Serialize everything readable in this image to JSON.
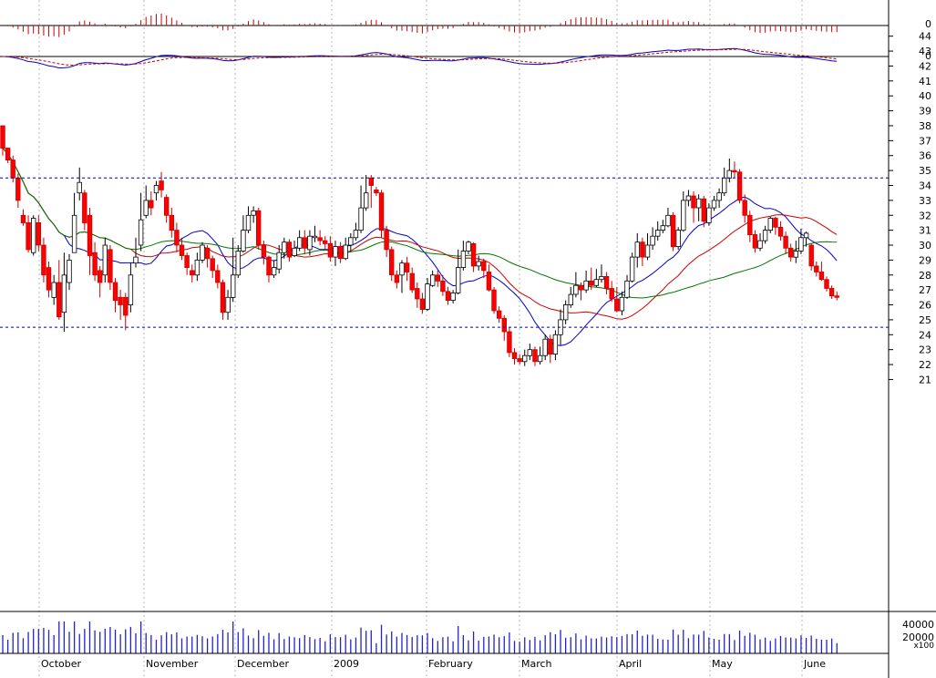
{
  "chart_data": {
    "type": "candlestick",
    "months": [
      "October",
      "November",
      "December",
      "2009",
      "February",
      "March",
      "April",
      "May",
      "June"
    ],
    "y_ticks": [
      "21",
      "22",
      "23",
      "24",
      "25",
      "26",
      "27",
      "28",
      "29",
      "30",
      "31",
      "32",
      "33",
      "34",
      "35",
      "36",
      "37",
      "38",
      "39",
      "40",
      "41",
      "42",
      "43",
      "44"
    ],
    "ylim": [
      20.5,
      44.5
    ],
    "reference_levels": [
      34.5,
      24.5
    ],
    "macd_ticks": [
      "0",
      "0"
    ],
    "volume_ticks": [
      "40000",
      "20000"
    ],
    "volume_scale_label": "x100",
    "colors": {
      "up": "#ffffff",
      "down": "#ff0000",
      "ma_fast": "#0000cc",
      "ma_mid": "#cc0000",
      "ma_slow": "#007700",
      "volume": "#2222cc",
      "reference": "#000099"
    },
    "candles": [
      [
        38,
        36.5,
        38,
        36
      ],
      [
        36.5,
        35.7,
        36.5,
        35.5
      ],
      [
        35.7,
        34.5,
        36,
        34.2
      ],
      [
        34.5,
        33,
        34.8,
        32.5
      ],
      [
        32,
        31.5,
        32.4,
        31.3
      ],
      [
        31.5,
        29.7,
        32,
        29.5
      ],
      [
        29.5,
        31.8,
        32,
        29.3
      ],
      [
        31.5,
        30,
        32,
        29.6
      ],
      [
        30,
        28,
        30.5,
        27.5
      ],
      [
        28.5,
        27,
        28.9,
        26.5
      ],
      [
        26.5,
        27.5,
        28,
        26
      ],
      [
        27.5,
        25.2,
        29,
        25
      ],
      [
        25.5,
        28,
        29.5,
        24.2
      ],
      [
        27.5,
        29,
        29.4,
        27
      ],
      [
        29.5,
        32,
        33.5,
        29.5
      ],
      [
        33.5,
        34.2,
        35.2,
        33
      ],
      [
        33.5,
        31.5,
        33.7,
        31
      ],
      [
        32,
        29.3,
        32.5,
        28
      ],
      [
        29.5,
        28,
        30.2,
        27.6
      ],
      [
        28.3,
        27.5,
        28.6,
        26.5
      ],
      [
        28,
        30,
        30.5,
        27.5
      ],
      [
        29.7,
        27.5,
        30,
        27
      ],
      [
        27.5,
        26.3,
        27.8,
        25.5
      ],
      [
        26.5,
        26,
        27,
        25
      ],
      [
        26.5,
        25.3,
        26.8,
        24.3
      ],
      [
        26,
        28,
        28.8,
        25.5
      ],
      [
        28.8,
        29.2,
        30.5,
        28.5
      ],
      [
        30,
        31.7,
        33.5,
        29.6
      ],
      [
        32,
        33,
        34,
        31.8
      ],
      [
        33,
        32.5,
        33.6,
        32
      ],
      [
        33.5,
        34,
        34.3,
        33
      ],
      [
        34.3,
        33.7,
        34.9,
        33.2
      ],
      [
        33.2,
        32,
        33.4,
        31.5
      ],
      [
        32,
        31,
        32.5,
        30.5
      ],
      [
        31,
        30,
        31.5,
        29.5
      ],
      [
        30,
        29.3,
        30.5,
        29
      ],
      [
        29.3,
        28.5,
        29.5,
        28
      ],
      [
        28.3,
        28,
        28.7,
        27.5
      ],
      [
        28,
        29,
        29.5,
        27.6
      ],
      [
        29,
        30,
        30.2,
        28.8
      ],
      [
        29.8,
        29.1,
        30,
        28.5
      ],
      [
        29.1,
        28.3,
        29.3,
        27.8
      ],
      [
        28.3,
        27.5,
        28.7,
        27.1
      ],
      [
        27.5,
        25.5,
        27.7,
        25
      ],
      [
        25.5,
        26.5,
        27,
        25
      ],
      [
        26.5,
        28,
        30.5,
        26.2
      ],
      [
        28,
        29.6,
        30,
        27.8
      ],
      [
        29.6,
        31,
        32,
        29.5
      ],
      [
        31,
        32,
        32.6,
        30.8
      ],
      [
        32,
        32.3,
        32.6,
        31.5
      ],
      [
        32.3,
        30,
        32.5,
        29.7
      ],
      [
        30,
        29.2,
        30.3,
        28.7
      ],
      [
        29.2,
        28,
        29.3,
        27.5
      ],
      [
        28,
        28.5,
        29,
        27.8
      ],
      [
        28.4,
        29.5,
        30,
        28.1
      ],
      [
        29.5,
        30.2,
        30.5,
        29.1
      ],
      [
        30.2,
        29.2,
        30.4,
        28.9
      ],
      [
        29.3,
        29.8,
        30.3,
        29.2
      ],
      [
        29.8,
        30.5,
        31,
        29.6
      ],
      [
        30.5,
        29.8,
        31,
        29.4
      ],
      [
        29.7,
        30.6,
        31,
        29.3
      ],
      [
        30.5,
        30.6,
        31.3,
        30.2
      ],
      [
        30.5,
        30.3,
        31,
        30
      ],
      [
        30.3,
        30.1,
        30.6,
        29.7
      ],
      [
        30.1,
        29.2,
        30.6,
        28.9
      ],
      [
        29.2,
        29.9,
        30.3,
        28.6
      ],
      [
        29.9,
        29.1,
        30.2,
        28.8
      ],
      [
        29.1,
        30,
        30.5,
        29
      ],
      [
        30,
        30.5,
        30.8,
        29.6
      ],
      [
        30.5,
        31,
        31.5,
        30.3
      ],
      [
        31,
        32.5,
        34,
        30.8
      ],
      [
        32.5,
        33.5,
        34.7,
        32.3
      ],
      [
        34.5,
        34,
        34.7,
        32.5
      ],
      [
        33.7,
        33.5,
        33.9,
        33.3
      ],
      [
        33.5,
        31,
        33.7,
        30.5
      ],
      [
        31,
        29.7,
        31.3,
        29.2
      ],
      [
        29.7,
        28,
        29.9,
        27.6
      ],
      [
        28,
        27.5,
        28.3,
        27.1
      ],
      [
        28,
        28.8,
        29,
        26.8
      ],
      [
        28.8,
        28.2,
        29.2,
        27.6
      ],
      [
        28.1,
        27,
        28.5,
        26.8
      ],
      [
        27.1,
        26.4,
        27.5,
        25.8
      ],
      [
        26.4,
        25.7,
        26.8,
        25.4
      ],
      [
        25.7,
        27.4,
        27.8,
        25.6
      ],
      [
        27.3,
        28,
        28.3,
        27.2
      ],
      [
        28,
        27.6,
        28.3,
        27.2
      ],
      [
        27.6,
        26.9,
        28,
        26.6
      ],
      [
        26.9,
        26.3,
        27.2,
        26
      ],
      [
        26.3,
        26.8,
        27,
        26.1
      ],
      [
        26.8,
        28.5,
        29.7,
        26.7
      ],
      [
        28.5,
        29.6,
        30.3,
        28.3
      ],
      [
        29.6,
        30.2,
        30.3,
        29.4
      ],
      [
        30.1,
        28.6,
        30.2,
        28.2
      ],
      [
        28.6,
        28.9,
        29.3,
        28.3
      ],
      [
        28.9,
        28.3,
        29.1,
        27.8
      ],
      [
        28.2,
        27,
        28.7,
        26.9
      ],
      [
        27,
        25.6,
        27.2,
        25.4
      ],
      [
        25.6,
        25.1,
        25.9,
        24.8
      ],
      [
        25.1,
        24.2,
        25.3,
        23.6
      ],
      [
        24.2,
        22.8,
        24.5,
        22.5
      ],
      [
        22.8,
        22.4,
        23.1,
        22
      ],
      [
        22.4,
        22.2,
        22.7,
        22
      ],
      [
        22.2,
        22.6,
        23,
        21.9
      ],
      [
        22.6,
        23,
        23.4,
        22.3
      ],
      [
        23,
        22.2,
        23.2,
        21.9
      ],
      [
        22.2,
        22.6,
        23.2,
        22
      ],
      [
        22.6,
        23.7,
        24,
        22.3
      ],
      [
        23.7,
        22.7,
        24,
        22.1
      ],
      [
        22.7,
        24,
        24.3,
        22.3
      ],
      [
        24,
        25,
        25.7,
        23.3
      ],
      [
        25,
        26,
        26.3,
        24.7
      ],
      [
        26,
        26.7,
        27.2,
        25.8
      ],
      [
        26.7,
        27.3,
        28.2,
        26.5
      ],
      [
        27.3,
        27,
        27.5,
        26.3
      ],
      [
        27,
        27.6,
        28.3,
        26.8
      ],
      [
        27.6,
        27.3,
        28.5,
        27
      ],
      [
        27.3,
        27.7,
        28.4,
        27.2
      ],
      [
        27.7,
        27.9,
        28.7,
        27.5
      ],
      [
        27.9,
        27.1,
        28.2,
        26.7
      ],
      [
        27.1,
        26.4,
        27.6,
        26.2
      ],
      [
        26.4,
        25.6,
        27.2,
        25.5
      ],
      [
        25.6,
        26.5,
        26.9,
        25.3
      ],
      [
        26.5,
        27.6,
        28,
        26.4
      ],
      [
        27.6,
        29.2,
        29.5,
        27.5
      ],
      [
        29.2,
        30.2,
        30.8,
        28.5
      ],
      [
        30.2,
        29.2,
        30.5,
        28.6
      ],
      [
        29.2,
        30,
        30.8,
        29
      ],
      [
        30,
        30.6,
        31.2,
        29.7
      ],
      [
        30.6,
        31,
        31.6,
        30.3
      ],
      [
        31,
        31.3,
        31.7,
        30.8
      ],
      [
        31.3,
        32,
        32.5,
        31.2
      ],
      [
        32,
        29.9,
        32.2,
        29.6
      ],
      [
        29.9,
        31,
        31.2,
        29.7
      ],
      [
        31,
        33,
        33.6,
        30.9
      ],
      [
        33,
        33.3,
        33.7,
        32.6
      ],
      [
        33.3,
        32.5,
        33.6,
        31.5
      ],
      [
        32.5,
        33.1,
        33.4,
        31.6
      ],
      [
        33.1,
        31.6,
        33.3,
        31.2
      ],
      [
        31.5,
        32.5,
        32.8,
        31.3
      ],
      [
        32.5,
        33,
        33.3,
        32.3
      ],
      [
        33,
        33.5,
        33.8,
        32.5
      ],
      [
        33.5,
        34.5,
        35.2,
        33.3
      ],
      [
        34.5,
        35,
        35.8,
        34.2
      ],
      [
        35,
        34.9,
        35.6,
        34.5
      ],
      [
        34.9,
        33,
        35.1,
        32.8
      ],
      [
        33,
        32,
        33.4,
        31.5
      ],
      [
        32,
        30.7,
        32.3,
        30.2
      ],
      [
        30.7,
        29.8,
        31,
        29.5
      ],
      [
        29.8,
        30.3,
        30.8,
        29.6
      ],
      [
        30.3,
        31,
        31.3,
        30.1
      ],
      [
        31,
        31.8,
        31.9,
        30.8
      ],
      [
        31.8,
        31.2,
        31.9,
        30.7
      ],
      [
        31.2,
        30.6,
        31.6,
        30.3
      ],
      [
        30.6,
        29.8,
        30.9,
        29.4
      ],
      [
        29.8,
        29.2,
        30.1,
        28.9
      ],
      [
        29.2,
        29.6,
        30.3,
        28.8
      ],
      [
        29.6,
        30.5,
        31.1,
        29.4
      ],
      [
        30.5,
        30.8,
        30.9,
        29.9
      ],
      [
        30,
        28.6,
        30.1,
        28.3
      ],
      [
        28.6,
        28.2,
        28.9,
        27.9
      ],
      [
        28.2,
        27.7,
        28.9,
        27.6
      ],
      [
        27.7,
        27.1,
        27.9,
        26.9
      ],
      [
        27.1,
        26.6,
        27.3,
        26.4
      ],
      [
        26.6,
        26.5,
        26.9,
        26.3
      ]
    ]
  }
}
